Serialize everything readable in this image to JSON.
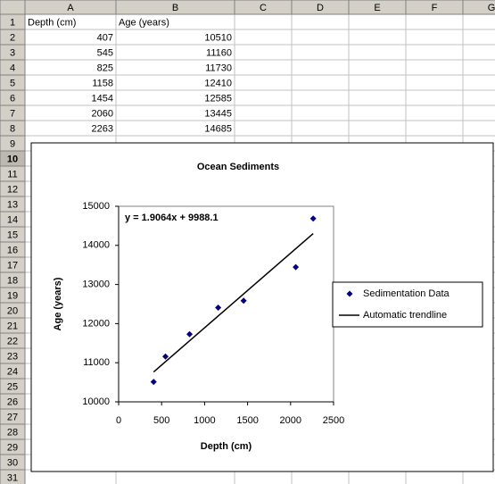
{
  "sheet": {
    "columns": [
      "A",
      "B",
      "C",
      "D",
      "E",
      "F",
      "G"
    ],
    "row_numbers": [
      1,
      2,
      3,
      4,
      5,
      6,
      7,
      8,
      9,
      10,
      11,
      12,
      13,
      14,
      15,
      16,
      17,
      18,
      19,
      20,
      21,
      22,
      23,
      24,
      25,
      26,
      27,
      28,
      29,
      30,
      31
    ],
    "cells": [
      [
        "Depth (cm)",
        "Age (years)"
      ],
      [
        407,
        10510
      ],
      [
        545,
        11160
      ],
      [
        825,
        11730
      ],
      [
        1158,
        12410
      ],
      [
        1454,
        12585
      ],
      [
        2060,
        13445
      ],
      [
        2263,
        14685
      ]
    ]
  },
  "chart_data": {
    "type": "scatter",
    "title": "Ocean Sediments",
    "x_label": "Depth (cm)",
    "y_label": "Age (years)",
    "x": [
      407,
      545,
      825,
      1158,
      1454,
      2060,
      2263
    ],
    "series": [
      {
        "name": "Sedimentation Data",
        "color": "#000080",
        "values": [
          10510,
          11160,
          11730,
          12410,
          12585,
          13445,
          14685
        ]
      }
    ],
    "trendline": {
      "name": "Automatic trendline",
      "label": "y = 1.9064x + 9988.1",
      "slope": 1.9064,
      "intercept": 9988.1,
      "color": "#000000"
    },
    "xlim": [
      0,
      2500
    ],
    "xticks": [
      0,
      500,
      1000,
      1500,
      2000,
      2500
    ],
    "ylim": [
      10000,
      15000
    ],
    "yticks": [
      10000,
      11000,
      12000,
      13000,
      14000,
      15000
    ],
    "legend": "right"
  }
}
